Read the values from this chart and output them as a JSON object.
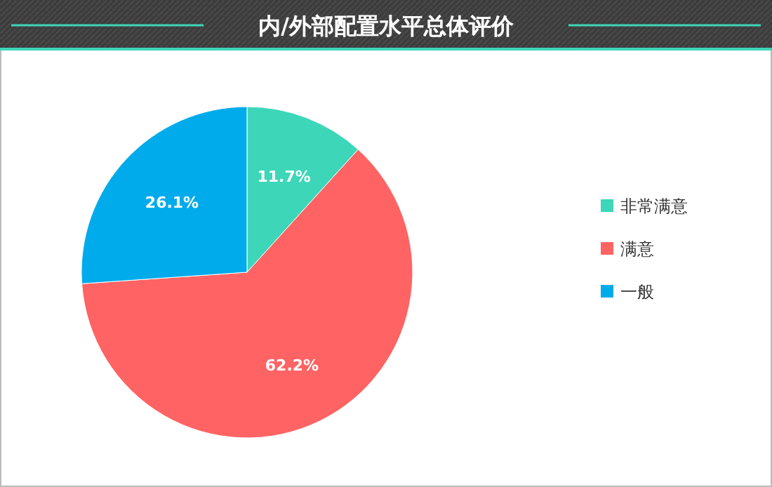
{
  "chart_data": {
    "type": "pie",
    "title": "内/外部配置水平总体评价",
    "categories": [
      "非常满意",
      "满意",
      "一般"
    ],
    "values": [
      11.7,
      62.2,
      26.1
    ],
    "value_labels": [
      "11.7%",
      "62.2%",
      "26.1%"
    ],
    "colors": [
      "#3dd6b8",
      "#ff6363",
      "#00abeb"
    ],
    "legend": "right"
  }
}
